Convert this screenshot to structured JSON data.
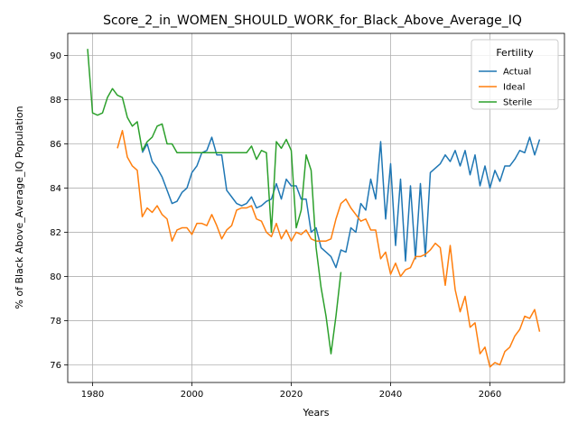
{
  "chart_data": {
    "type": "line",
    "title": "Score_2_in_WOMEN_SHOULD_WORK_for_Black_Above_Average_IQ",
    "xlabel": "Years",
    "ylabel": "% of Black Above_Average_IQ Population",
    "xlim": [
      1975,
      2075
    ],
    "ylim": [
      75.2,
      91.0
    ],
    "xticks": [
      1980,
      2000,
      2020,
      2040,
      2060
    ],
    "yticks": [
      76,
      78,
      80,
      82,
      84,
      86,
      88,
      90
    ],
    "grid": true,
    "legend": {
      "title": "Fertility",
      "placement": "top-right"
    },
    "series": [
      {
        "name": "Actual",
        "color": "#1f77b4",
        "x": [
          1990,
          1991,
          1992,
          1993,
          1994,
          1995,
          1996,
          1997,
          1998,
          1999,
          2000,
          2001,
          2002,
          2003,
          2004,
          2005,
          2006,
          2007,
          2008,
          2009,
          2010,
          2011,
          2012,
          2013,
          2014,
          2015,
          2016,
          2017,
          2018,
          2019,
          2020,
          2021,
          2022,
          2023,
          2024,
          2025,
          2026,
          2027,
          2028,
          2029,
          2030,
          2031,
          2032,
          2033,
          2034,
          2035,
          2036,
          2037,
          2038,
          2039,
          2040,
          2041,
          2042,
          2043,
          2044,
          2045,
          2046,
          2047,
          2048,
          2049,
          2050,
          2051,
          2052,
          2053,
          2054,
          2055,
          2056,
          2057,
          2058,
          2059,
          2060,
          2061,
          2062,
          2063,
          2064,
          2065,
          2066,
          2067,
          2068,
          2069,
          2070
        ],
        "values": [
          85.6,
          86.0,
          85.2,
          84.9,
          84.5,
          83.9,
          83.3,
          83.4,
          83.8,
          84.0,
          84.7,
          85.0,
          85.6,
          85.7,
          86.3,
          85.5,
          85.5,
          83.9,
          83.6,
          83.3,
          83.2,
          83.3,
          83.6,
          83.1,
          83.2,
          83.4,
          83.5,
          84.2,
          83.5,
          84.4,
          84.1,
          84.1,
          83.5,
          83.5,
          82.0,
          82.2,
          81.3,
          81.1,
          80.9,
          80.4,
          81.2,
          81.1,
          82.2,
          82.0,
          83.3,
          83.0,
          84.4,
          83.5,
          86.1,
          82.6,
          85.1,
          81.4,
          84.4,
          80.7,
          84.1,
          80.8,
          84.2,
          80.9,
          84.7,
          84.9,
          85.1,
          85.5,
          85.2,
          85.7,
          85.0,
          85.7,
          84.6,
          85.5,
          84.1,
          85.0,
          84.0,
          84.8,
          84.3,
          85.0,
          85.0,
          85.3,
          85.7,
          85.6,
          86.3,
          85.5,
          86.2
        ]
      },
      {
        "name": "Ideal",
        "color": "#ff7f0e",
        "x": [
          1985,
          1986,
          1987,
          1988,
          1989,
          1990,
          1991,
          1992,
          1993,
          1994,
          1995,
          1996,
          1997,
          1998,
          1999,
          2000,
          2001,
          2002,
          2003,
          2004,
          2005,
          2006,
          2007,
          2008,
          2009,
          2010,
          2011,
          2012,
          2013,
          2014,
          2015,
          2016,
          2017,
          2018,
          2019,
          2020,
          2021,
          2022,
          2023,
          2024,
          2025,
          2026,
          2027,
          2028,
          2029,
          2030,
          2031,
          2032,
          2033,
          2034,
          2035,
          2036,
          2037,
          2038,
          2039,
          2040,
          2041,
          2042,
          2043,
          2044,
          2045,
          2046,
          2047,
          2048,
          2049,
          2050,
          2051,
          2052,
          2053,
          2054,
          2055,
          2056,
          2057,
          2058,
          2059,
          2060,
          2061,
          2062,
          2063,
          2064,
          2065,
          2066,
          2067,
          2068,
          2069,
          2070
        ],
        "values": [
          85.8,
          86.6,
          85.4,
          85.0,
          84.8,
          82.7,
          83.1,
          82.9,
          83.2,
          82.8,
          82.6,
          81.6,
          82.1,
          82.2,
          82.2,
          81.9,
          82.4,
          82.4,
          82.3,
          82.8,
          82.3,
          81.7,
          82.1,
          82.3,
          83.0,
          83.1,
          83.1,
          83.2,
          82.6,
          82.5,
          82.0,
          81.8,
          82.4,
          81.7,
          82.1,
          81.6,
          82.0,
          81.9,
          82.1,
          81.7,
          81.6,
          81.6,
          81.6,
          81.7,
          82.6,
          83.3,
          83.5,
          83.1,
          82.8,
          82.5,
          82.6,
          82.1,
          82.1,
          80.8,
          81.1,
          80.1,
          80.6,
          80.0,
          80.3,
          80.4,
          80.9,
          80.9,
          81.0,
          81.2,
          81.5,
          81.3,
          79.6,
          81.4,
          79.4,
          78.4,
          79.1,
          77.7,
          77.9,
          76.5,
          76.8,
          75.9,
          76.1,
          76.0,
          76.6,
          76.8,
          77.3,
          77.6,
          78.2,
          78.1,
          78.5,
          77.5
        ]
      },
      {
        "name": "Sterile",
        "color": "#2ca02c",
        "x": [
          1979,
          1980,
          1981,
          1982,
          1983,
          1984,
          1985,
          1986,
          1987,
          1988,
          1989,
          1990,
          1991,
          1992,
          1993,
          1994,
          1995,
          1996,
          1997,
          1998,
          1999,
          2000,
          2001,
          2002,
          2003,
          2004,
          2005,
          2006,
          2007,
          2008,
          2009,
          2010,
          2011,
          2012,
          2013,
          2014,
          2015,
          2016,
          2017,
          2018,
          2019,
          2020,
          2021,
          2022,
          2023,
          2024,
          2025,
          2026,
          2027,
          2028,
          2029,
          2030
        ],
        "values": [
          90.3,
          87.4,
          87.3,
          87.4,
          88.1,
          88.5,
          88.2,
          88.1,
          87.2,
          86.8,
          87.0,
          85.7,
          86.1,
          86.3,
          86.8,
          86.9,
          86.0,
          86.0,
          85.6,
          85.6,
          85.6,
          85.6,
          85.6,
          85.6,
          85.6,
          85.6,
          85.6,
          85.6,
          85.6,
          85.6,
          85.6,
          85.6,
          85.6,
          85.9,
          85.3,
          85.7,
          85.6,
          82.0,
          86.1,
          85.8,
          86.2,
          85.7,
          82.2,
          83.0,
          85.5,
          84.8,
          81.3,
          79.5,
          78.2,
          76.5,
          78.2,
          80.2
        ]
      }
    ]
  }
}
